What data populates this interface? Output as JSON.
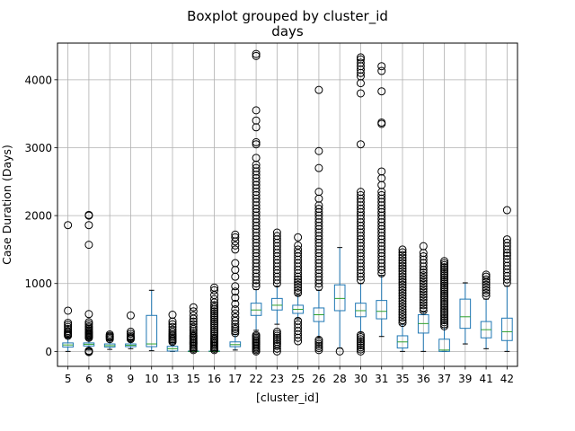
{
  "chart_data": {
    "type": "box",
    "suptitle": "Boxplot grouped by cluster_id",
    "title": "days",
    "xlabel": "[cluster_id]",
    "ylabel": "Case Duration (Days)",
    "ylim": [
      -220,
      4540
    ],
    "yticks": [
      0,
      1000,
      2000,
      3000,
      4000
    ],
    "grid": true,
    "box_color": "#1f77b4",
    "median_color": "#2ca02c",
    "flier_color": "#000000",
    "categories": [
      "5",
      "6",
      "8",
      "9",
      "10",
      "13",
      "15",
      "16",
      "17",
      "22",
      "23",
      "25",
      "26",
      "28",
      "30",
      "31",
      "35",
      "36",
      "37",
      "39",
      "41",
      "42"
    ],
    "boxes": [
      {
        "id": "5",
        "whislo": 0,
        "q1": 65,
        "med": 95,
        "q3": 125,
        "whishi": 215,
        "fliers": [
          230,
          245,
          260,
          280,
          300,
          330,
          360,
          390,
          420,
          600,
          1860
        ]
      },
      {
        "id": "6",
        "whislo": 20,
        "q1": 80,
        "med": 105,
        "q3": 125,
        "whishi": 190,
        "fliers": [
          -10,
          0,
          10,
          200,
          215,
          230,
          245,
          260,
          275,
          290,
          310,
          330,
          350,
          370,
          400,
          430,
          550,
          1570,
          1860,
          2000,
          2010
        ]
      },
      {
        "id": "8",
        "whislo": 30,
        "q1": 65,
        "med": 85,
        "q3": 110,
        "whishi": 170,
        "fliers": [
          180,
          200,
          215,
          230,
          250
        ]
      },
      {
        "id": "9",
        "whislo": 40,
        "q1": 70,
        "med": 90,
        "q3": 110,
        "whishi": 170,
        "fliers": [
          180,
          195,
          210,
          230,
          260,
          290,
          530
        ]
      },
      {
        "id": "10",
        "whislo": 10,
        "q1": 70,
        "med": 110,
        "q3": 530,
        "whishi": 900,
        "fliers": []
      },
      {
        "id": "13",
        "whislo": 0,
        "q1": 5,
        "med": 40,
        "q3": 75,
        "whishi": 130,
        "fliers": [
          140,
          160,
          180,
          200,
          220,
          240,
          260,
          290,
          320,
          360,
          400,
          440,
          540
        ]
      },
      {
        "id": "15",
        "whislo": 0,
        "q1": 0,
        "med": 0,
        "q3": 5,
        "whishi": 10,
        "fliers": [
          20,
          40,
          60,
          80,
          100,
          120,
          140,
          160,
          180,
          200,
          220,
          240,
          270,
          300,
          330,
          360,
          400,
          440,
          480,
          530,
          590,
          650
        ]
      },
      {
        "id": "16",
        "whislo": 0,
        "q1": 0,
        "med": 0,
        "q3": 5,
        "whishi": 10,
        "fliers": [
          20,
          40,
          60,
          80,
          100,
          120,
          140,
          160,
          180,
          200,
          230,
          260,
          290,
          320,
          350,
          380,
          410,
          440,
          470,
          500,
          530,
          560,
          590,
          620,
          650,
          680,
          720,
          770,
          830,
          900,
          940
        ]
      },
      {
        "id": "17",
        "whislo": 20,
        "q1": 70,
        "med": 100,
        "q3": 140,
        "whishi": 250,
        "fliers": [
          270,
          300,
          330,
          360,
          400,
          450,
          500,
          560,
          620,
          700,
          790,
          880,
          960,
          1100,
          1200,
          1300,
          1500,
          1560,
          1620,
          1680,
          1720
        ]
      },
      {
        "id": "22",
        "whislo": 310,
        "q1": 530,
        "med": 610,
        "q3": 710,
        "whishi": 910,
        "fliers": [
          0,
          20,
          40,
          60,
          80,
          100,
          120,
          140,
          160,
          180,
          200,
          220,
          240,
          960,
          1000,
          1050,
          1100,
          1150,
          1200,
          1250,
          1300,
          1350,
          1400,
          1450,
          1500,
          1550,
          1600,
          1650,
          1700,
          1750,
          1800,
          1850,
          1900,
          1950,
          2000,
          2050,
          2100,
          2150,
          2200,
          2250,
          2300,
          2350,
          2400,
          2450,
          2500,
          2550,
          2600,
          2650,
          2700,
          2750,
          2850,
          3050,
          3080,
          3300,
          3400,
          3550,
          4350,
          4380
        ]
      },
      {
        "id": "23",
        "whislo": 400,
        "q1": 610,
        "med": 680,
        "q3": 780,
        "whishi": 960,
        "fliers": [
          0,
          40,
          80,
          110,
          140,
          170,
          200,
          230,
          260,
          290,
          1000,
          1050,
          1100,
          1150,
          1200,
          1250,
          1300,
          1350,
          1400,
          1450,
          1500,
          1550,
          1600,
          1650,
          1700,
          1750
        ]
      },
      {
        "id": "25",
        "whislo": 480,
        "q1": 560,
        "med": 620,
        "q3": 680,
        "whishi": 830,
        "fliers": [
          150,
          200,
          250,
          300,
          350,
          400,
          450,
          860,
          900,
          940,
          980,
          1020,
          1060,
          1100,
          1150,
          1200,
          1250,
          1300,
          1350,
          1400,
          1450,
          1500,
          1560,
          1680
        ]
      },
      {
        "id": "26",
        "whislo": 210,
        "q1": 440,
        "med": 540,
        "q3": 640,
        "whishi": 900,
        "fliers": [
          20,
          50,
          80,
          110,
          140,
          170,
          950,
          1000,
          1050,
          1100,
          1150,
          1200,
          1250,
          1300,
          1350,
          1400,
          1450,
          1500,
          1550,
          1600,
          1650,
          1700,
          1750,
          1800,
          1850,
          1900,
          1950,
          2000,
          2050,
          2100,
          2150,
          2250,
          2350,
          2700,
          2950,
          3850
        ]
      },
      {
        "id": "28",
        "whislo": 50,
        "q1": 600,
        "med": 780,
        "q3": 980,
        "whishi": 1530,
        "fliers": [
          0
        ]
      },
      {
        "id": "30",
        "whislo": 280,
        "q1": 510,
        "med": 600,
        "q3": 710,
        "whishi": 1000,
        "fliers": [
          0,
          30,
          60,
          90,
          120,
          150,
          180,
          210,
          240,
          1050,
          1100,
          1150,
          1200,
          1250,
          1300,
          1350,
          1400,
          1450,
          1500,
          1550,
          1600,
          1650,
          1700,
          1750,
          1800,
          1850,
          1900,
          1950,
          2000,
          2050,
          2100,
          2150,
          2200,
          2250,
          2300,
          2350,
          3050,
          3800,
          3950,
          4050,
          4100,
          4150,
          4200,
          4250,
          4300,
          4330
        ]
      },
      {
        "id": "31",
        "whislo": 220,
        "q1": 480,
        "med": 590,
        "q3": 750,
        "whishi": 1120,
        "fliers": [
          1150,
          1200,
          1250,
          1300,
          1350,
          1400,
          1450,
          1500,
          1550,
          1600,
          1650,
          1700,
          1750,
          1800,
          1850,
          1900,
          1950,
          2000,
          2050,
          2100,
          2150,
          2200,
          2250,
          2300,
          2350,
          2450,
          2550,
          2650,
          3350,
          3370,
          3830,
          4130,
          4200
        ]
      },
      {
        "id": "35",
        "whislo": 0,
        "q1": 50,
        "med": 140,
        "q3": 230,
        "whishi": 400,
        "fliers": [
          420,
          460,
          500,
          540,
          580,
          620,
          660,
          700,
          740,
          780,
          820,
          860,
          900,
          940,
          980,
          1020,
          1060,
          1100,
          1140,
          1180,
          1220,
          1260,
          1300,
          1340,
          1380,
          1420,
          1460,
          1500
        ]
      },
      {
        "id": "36",
        "whislo": 0,
        "q1": 270,
        "med": 410,
        "q3": 540,
        "whishi": 580,
        "fliers": [
          600,
          640,
          680,
          720,
          760,
          800,
          840,
          880,
          920,
          960,
          1000,
          1040,
          1080,
          1120,
          1160,
          1200,
          1250,
          1300,
          1350,
          1400,
          1450,
          1550
        ]
      },
      {
        "id": "37",
        "whislo": 0,
        "q1": 0,
        "med": 20,
        "q3": 180,
        "whishi": 350,
        "fliers": [
          370,
          400,
          430,
          460,
          490,
          520,
          550,
          580,
          610,
          640,
          670,
          700,
          730,
          760,
          790,
          820,
          850,
          880,
          910,
          940,
          970,
          1000,
          1030,
          1060,
          1090,
          1120,
          1150,
          1180,
          1210,
          1240,
          1270,
          1300,
          1330
        ]
      },
      {
        "id": "39",
        "whislo": 110,
        "q1": 340,
        "med": 510,
        "q3": 770,
        "whishi": 1010,
        "fliers": []
      },
      {
        "id": "41",
        "whislo": 40,
        "q1": 200,
        "med": 320,
        "q3": 440,
        "whishi": 770,
        "fliers": [
          820,
          860,
          900,
          940,
          980,
          1020,
          1060,
          1100,
          1130
        ]
      },
      {
        "id": "42",
        "whislo": 0,
        "q1": 160,
        "med": 290,
        "q3": 490,
        "whishi": 960,
        "fliers": [
          1010,
          1060,
          1110,
          1160,
          1210,
          1260,
          1310,
          1360,
          1410,
          1450,
          1500,
          1550,
          1600,
          1650,
          2080
        ]
      }
    ]
  }
}
